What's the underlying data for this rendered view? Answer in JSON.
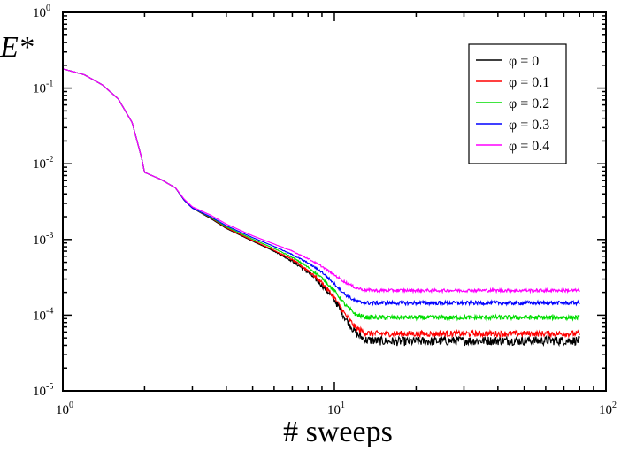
{
  "chart_data": {
    "type": "line",
    "xscale": "log",
    "yscale": "log",
    "xlim": [
      1,
      100
    ],
    "ylim": [
      1e-05,
      1
    ],
    "xlabel": "# sweeps",
    "ylabel": "E*",
    "grid": false,
    "legend_position": "top-right",
    "x_ticks": [
      {
        "base": "10",
        "exp": "0",
        "value": 1
      },
      {
        "base": "10",
        "exp": "1",
        "value": 10
      },
      {
        "base": "10",
        "exp": "2",
        "value": 100
      }
    ],
    "y_ticks": [
      {
        "base": "10",
        "exp": "-5",
        "value": 1e-05
      },
      {
        "base": "10",
        "exp": "-4",
        "value": 0.0001
      },
      {
        "base": "10",
        "exp": "-3",
        "value": 0.001
      },
      {
        "base": "10",
        "exp": "-2",
        "value": 0.01
      },
      {
        "base": "10",
        "exp": "-1",
        "value": 0.1
      },
      {
        "base": "10",
        "exp": "0",
        "value": 1
      }
    ],
    "x": [
      1.0,
      1.2,
      1.4,
      1.6,
      1.8,
      1.95,
      2.0,
      2.3,
      2.6,
      2.8,
      3.0,
      3.5,
      4.0,
      5.0,
      6.0,
      7.0,
      8.0,
      9.0,
      10.0,
      11.0,
      12.0,
      13.0,
      14.0,
      16.0,
      20.0,
      30.0,
      50.0,
      80.0
    ],
    "series": [
      {
        "name": "φ = 0",
        "color": "#000000",
        "noise": 0.12,
        "values": [
          0.18,
          0.15,
          0.11,
          0.072,
          0.035,
          0.012,
          0.0077,
          0.0062,
          0.0048,
          0.0033,
          0.0026,
          0.0019,
          0.0014,
          0.00095,
          0.0007,
          0.00052,
          0.00037,
          0.00025,
          0.00016,
          9e-05,
          5.8e-05,
          4.7e-05,
          4.6e-05,
          4.5e-05,
          4.5e-05,
          4.6e-05,
          4.6e-05,
          4.6e-05
        ]
      },
      {
        "name": "φ = 0.1",
        "color": "#ff0000",
        "noise": 0.08,
        "values": [
          0.18,
          0.15,
          0.11,
          0.072,
          0.035,
          0.012,
          0.0077,
          0.0062,
          0.0048,
          0.0033,
          0.0026,
          0.00195,
          0.00143,
          0.00097,
          0.00072,
          0.00054,
          0.00039,
          0.00027,
          0.00017,
          0.0001,
          6.8e-05,
          5.8e-05,
          5.7e-05,
          5.7e-05,
          5.7e-05,
          5.7e-05,
          5.7e-05,
          5.7e-05
        ]
      },
      {
        "name": "φ = 0.2",
        "color": "#00dd00",
        "noise": 0.06,
        "values": [
          0.18,
          0.15,
          0.11,
          0.072,
          0.035,
          0.012,
          0.0077,
          0.0062,
          0.0048,
          0.0033,
          0.0026,
          0.00197,
          0.00147,
          0.00101,
          0.00076,
          0.00058,
          0.00043,
          0.00031,
          0.00021,
          0.000135,
          0.000102,
          9.4e-05,
          9.3e-05,
          9.3e-05,
          9.3e-05,
          9.3e-05,
          9.3e-05,
          9.3e-05
        ]
      },
      {
        "name": "φ = 0.3",
        "color": "#0000ff",
        "noise": 0.05,
        "values": [
          0.18,
          0.15,
          0.11,
          0.072,
          0.035,
          0.012,
          0.0077,
          0.0062,
          0.0048,
          0.0033,
          0.0026,
          0.002,
          0.00152,
          0.00106,
          0.00081,
          0.00063,
          0.00049,
          0.00037,
          0.00026,
          0.000185,
          0.000152,
          0.000145,
          0.000145,
          0.000145,
          0.000145,
          0.000145,
          0.000145,
          0.000145
        ]
      },
      {
        "name": "φ = 0.4",
        "color": "#ff00ff",
        "noise": 0.04,
        "values": [
          0.18,
          0.15,
          0.11,
          0.072,
          0.035,
          0.012,
          0.0077,
          0.0062,
          0.0048,
          0.0034,
          0.0027,
          0.0021,
          0.0016,
          0.00112,
          0.00087,
          0.0007,
          0.00056,
          0.00044,
          0.00034,
          0.00027,
          0.00023,
          0.000215,
          0.000212,
          0.000212,
          0.000212,
          0.000212,
          0.000212,
          0.000212
        ]
      }
    ]
  }
}
